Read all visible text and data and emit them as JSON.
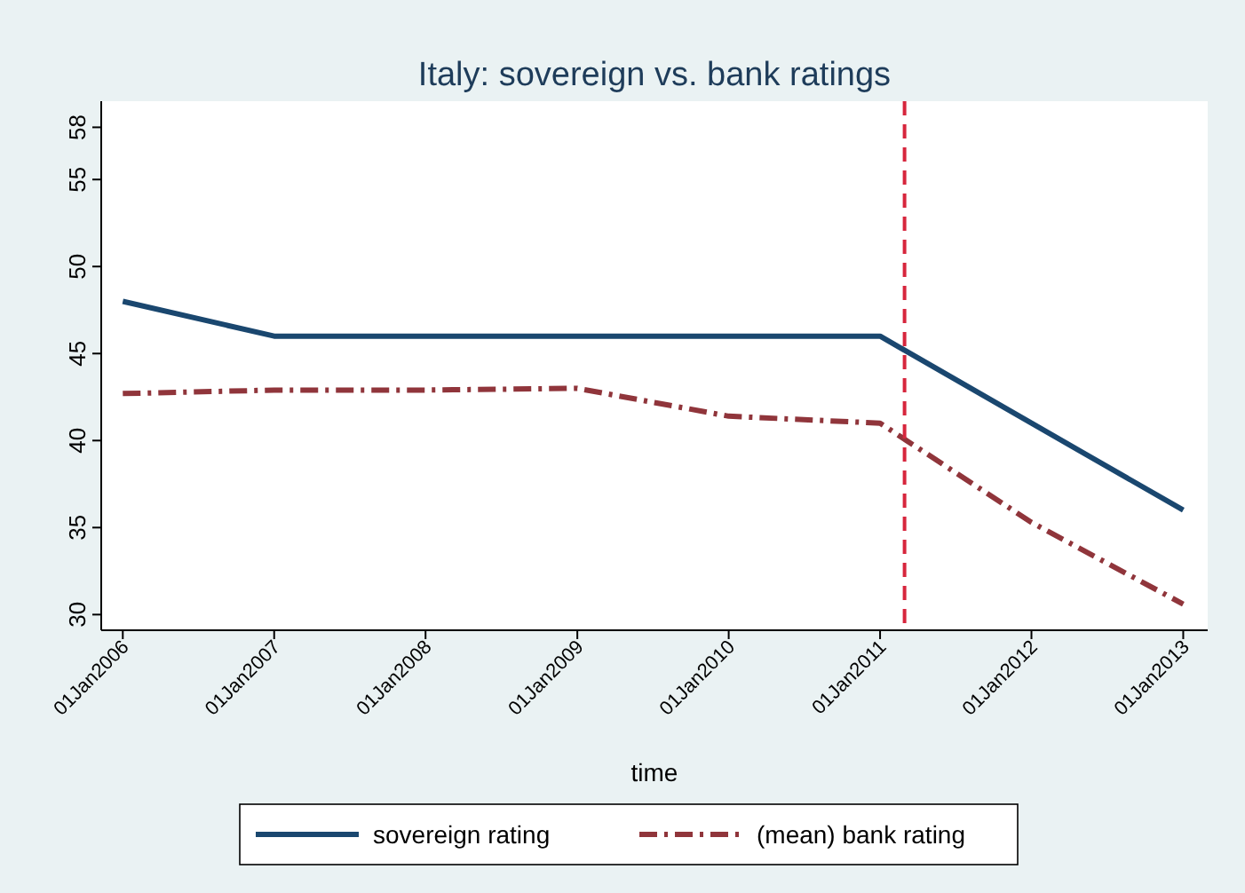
{
  "chart_data": {
    "type": "line",
    "title": "Italy: sovereign vs. bank ratings",
    "xlabel": "time",
    "x": [
      "2006-01-01",
      "2007-01-01",
      "2008-01-01",
      "2009-01-01",
      "2010-01-01",
      "2011-01-01",
      "2012-01-01",
      "2013-01-01"
    ],
    "series": [
      {
        "name": "sovereign rating",
        "color": "#1a476f",
        "line_style": "solid",
        "values": [
          48,
          46,
          46,
          46,
          46,
          46,
          41,
          36
        ]
      },
      {
        "name": "(mean) bank rating",
        "color": "#90353b",
        "line_style": "dashed",
        "values": [
          42.7,
          42.9,
          42.9,
          43.0,
          41.4,
          41.0,
          35.3,
          30.6
        ]
      }
    ],
    "xlim": [
      "2005-11-10",
      "2013-03-01"
    ],
    "xticks": [
      {
        "value": "2006-01-01",
        "label": "01Jan2006"
      },
      {
        "value": "2007-01-01",
        "label": "01Jan2007"
      },
      {
        "value": "2008-01-01",
        "label": "01Jan2008"
      },
      {
        "value": "2009-01-01",
        "label": "01Jan2009"
      },
      {
        "value": "2010-01-01",
        "label": "01Jan2010"
      },
      {
        "value": "2011-01-01",
        "label": "01Jan2011"
      },
      {
        "value": "2012-01-01",
        "label": "01Jan2012"
      },
      {
        "value": "2013-01-01",
        "label": "01Jan2013"
      }
    ],
    "ylim": [
      29.1,
      59.5
    ],
    "yticks": [
      30,
      35,
      40,
      45,
      50,
      55,
      58
    ],
    "ref_lines": [
      {
        "axis": "x",
        "value": "2011-03-01",
        "color": "#d7263d",
        "line_style": "dashed"
      }
    ],
    "legend": "bottom",
    "marker": "none"
  }
}
